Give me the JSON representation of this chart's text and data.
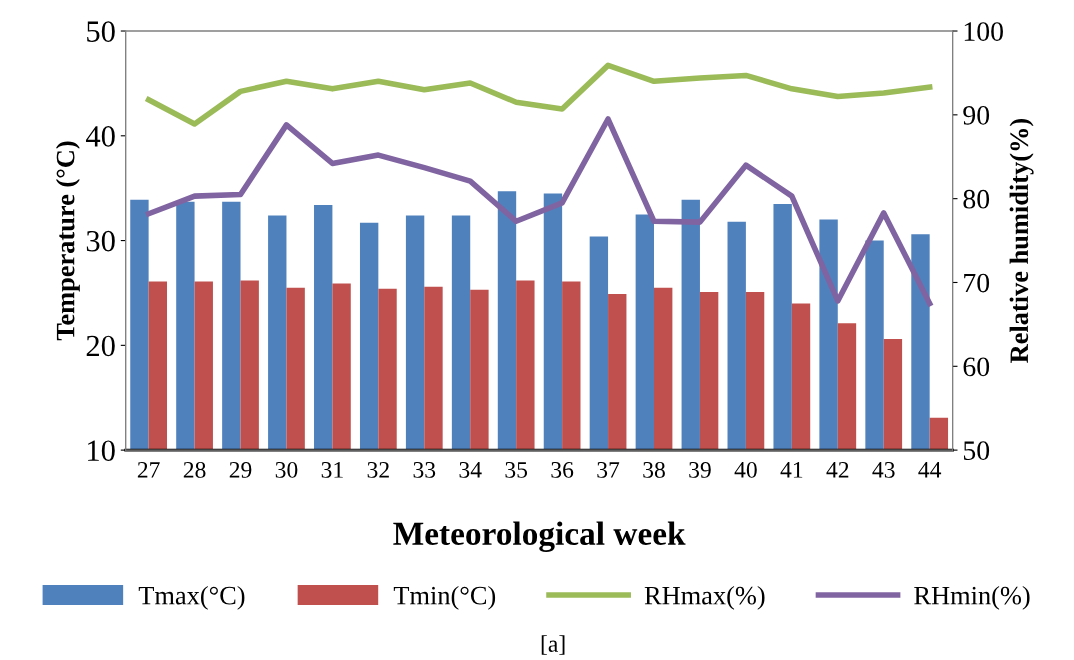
{
  "chart_data": {
    "type": "bar",
    "xlabel": "Meteorological week",
    "ylabel": "Temperature (°C)",
    "y2label": "Relative humidity(%)",
    "categories": [
      "27",
      "28",
      "29",
      "30",
      "31",
      "32",
      "33",
      "34",
      "35",
      "36",
      "37",
      "38",
      "39",
      "40",
      "41",
      "42",
      "43",
      "44"
    ],
    "series": [
      {
        "name": "Tmax(°C)",
        "color": "#4f81bd",
        "values": [
          33.9,
          33.7,
          33.7,
          32.4,
          33.4,
          31.7,
          32.4,
          32.4,
          34.7,
          34.5,
          30.4,
          32.5,
          33.9,
          31.8,
          33.5,
          32.0,
          30.0,
          30.6
        ]
      },
      {
        "name": "Tmin(°C)",
        "color": "#c0504d",
        "values": [
          26.1,
          26.1,
          26.2,
          25.5,
          25.9,
          25.4,
          25.6,
          25.3,
          26.2,
          26.1,
          24.9,
          25.5,
          25.1,
          25.1,
          24.0,
          22.1,
          20.6,
          13.1
        ]
      },
      {
        "name": "RHmax(%)",
        "color": "#9bbb59",
        "type": "line",
        "axis": "y2",
        "values": [
          91.8,
          88.9,
          92.8,
          94.0,
          93.1,
          94.0,
          93.0,
          93.8,
          91.5,
          90.7,
          95.9,
          94.0,
          94.4,
          94.7,
          93.1,
          92.2,
          92.6,
          93.3
        ]
      },
      {
        "name": "RHmin(%)",
        "color": "#8064a2",
        "type": "line",
        "axis": "y2",
        "values": [
          78.2,
          80.3,
          80.5,
          88.8,
          84.2,
          85.2,
          83.7,
          82.1,
          77.3,
          79.5,
          89.5,
          77.3,
          77.2,
          84.0,
          80.3,
          67.8,
          78.3,
          67.5
        ]
      }
    ],
    "ylim": [
      10,
      50
    ],
    "yticks": [
      10,
      20,
      30,
      40,
      50
    ],
    "y2lim": [
      50,
      100
    ],
    "y2ticks": [
      50,
      60,
      70,
      80,
      90,
      100
    ],
    "grid": false,
    "legend": "bottom",
    "marker": "none",
    "line_style": "solid",
    "annotations": [
      "[a]"
    ]
  }
}
